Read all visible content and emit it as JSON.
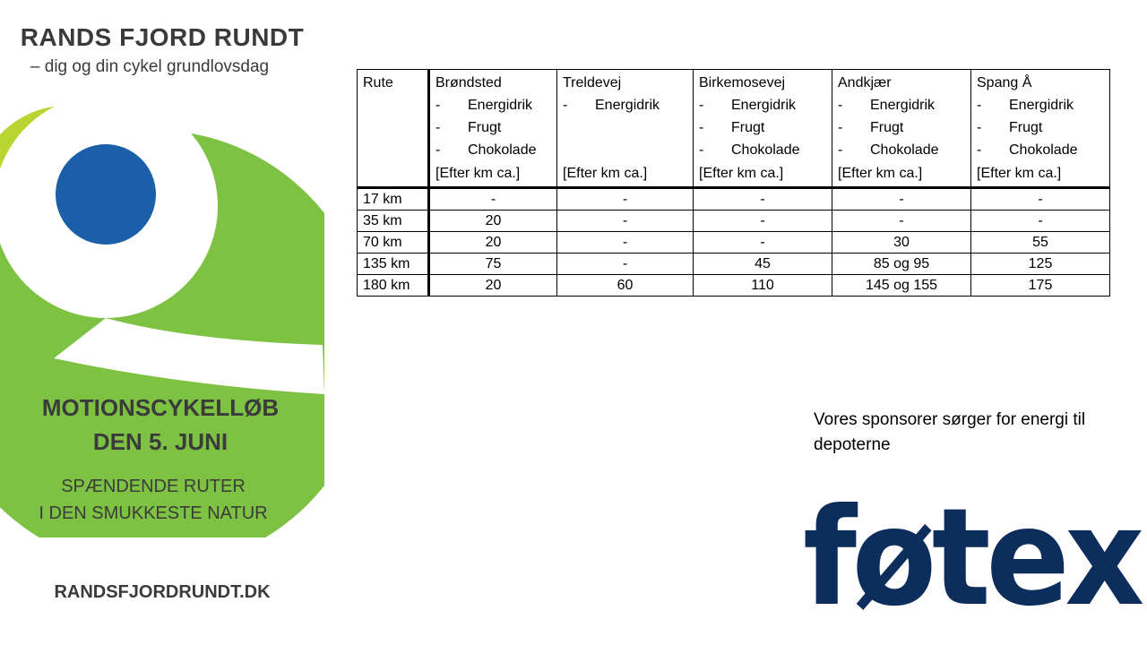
{
  "poster": {
    "title": "RANDS FJORD RUNDT",
    "subtitle": "– dig og din cykel grundlovsdag",
    "event_line1": "MOTIONSCYKELLØB",
    "event_line2": "DEN 5. JUNI",
    "tagline1": "SPÆNDENDE RUTER",
    "tagline2": "I DEN SMUKKESTE NATUR",
    "url": "RANDSFJORDRUNDT.DK",
    "colors": {
      "green": "#7dc242",
      "lime": "#b9d531",
      "blue": "#1a5fa8",
      "text": "#3a3a3a"
    }
  },
  "table": {
    "rute_header": "Rute",
    "columns": [
      {
        "name": "Brøndsted",
        "items": [
          "Energidrik",
          "Frugt",
          "Chokolade"
        ],
        "footer": "[Efter km ca.]"
      },
      {
        "name": "Treldevej",
        "items": [
          "Energidrik"
        ],
        "footer": "[Efter km ca.]"
      },
      {
        "name": "Birkemosevej",
        "items": [
          "Energidrik",
          "Frugt",
          "Chokolade"
        ],
        "footer": "[Efter km ca.]"
      },
      {
        "name": "Andkjær",
        "items": [
          "Energidrik",
          "Frugt",
          "Chokolade"
        ],
        "footer": "[Efter km ca.]"
      },
      {
        "name": "Spang Å",
        "items": [
          "Energidrik",
          "Frugt",
          "Chokolade"
        ],
        "footer": "[Efter km ca.]"
      }
    ],
    "dash": "-",
    "rows": [
      {
        "rute": "17 km",
        "values": [
          "-",
          "-",
          "-",
          "-",
          "-"
        ]
      },
      {
        "rute": "35 km",
        "values": [
          "20",
          "-",
          "-",
          "-",
          "-"
        ]
      },
      {
        "rute": "70 km",
        "values": [
          "20",
          "-",
          "-",
          "30",
          "55"
        ]
      },
      {
        "rute": "135 km",
        "values": [
          "75",
          "-",
          "45",
          "85 og 95",
          "125"
        ]
      },
      {
        "rute": "180 km",
        "values": [
          "20",
          "60",
          "110",
          "145 og 155",
          "175"
        ]
      }
    ]
  },
  "sponsor": {
    "text": "Vores sponsorer sørger for energi til depoterne",
    "logo_text": "føtex",
    "logo_color": "#0d2d5c"
  }
}
